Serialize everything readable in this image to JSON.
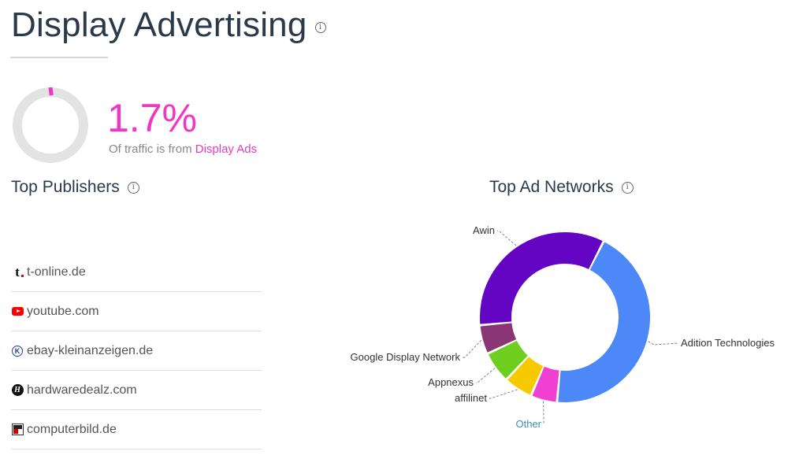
{
  "header": {
    "title": "Display Advertising",
    "info_icon": "info-icon"
  },
  "stat": {
    "value": "1.7%",
    "fraction": 0.017,
    "caption_prefix": "Of traffic is from ",
    "caption_highlight": "Display Ads",
    "accent_color": "#f135c4",
    "track_color": "#e3e3e3"
  },
  "publishers": {
    "heading": "Top Publishers",
    "items": [
      {
        "name": "t-online.de",
        "icon": "t-online-icon"
      },
      {
        "name": "youtube.com",
        "icon": "youtube-icon"
      },
      {
        "name": "ebay-kleinanzeigen.de",
        "icon": "ebay-kleinanzeigen-icon"
      },
      {
        "name": "hardwaredealz.com",
        "icon": "hardwaredealz-icon"
      },
      {
        "name": "computerbild.de",
        "icon": "computerbild-icon"
      }
    ]
  },
  "networks": {
    "heading": "Top Ad Networks"
  },
  "chart_data": {
    "type": "pie",
    "donut": true,
    "title": "Top Ad Networks",
    "legend": "none",
    "series": [
      {
        "name": "Adition Technologies",
        "value": 44.0,
        "color": "#4c88f7"
      },
      {
        "name": "Other",
        "value": 5.0,
        "color": "#f23fd3",
        "link": true
      },
      {
        "name": "affilinet",
        "value": 5.5,
        "color": "#f6c900"
      },
      {
        "name": "Appnexus",
        "value": 6.0,
        "color": "#6fcf1e"
      },
      {
        "name": "Google Display Network",
        "value": 5.5,
        "color": "#8b3674"
      },
      {
        "name": "Awin",
        "value": 34.0,
        "color": "#6305c3"
      }
    ]
  }
}
